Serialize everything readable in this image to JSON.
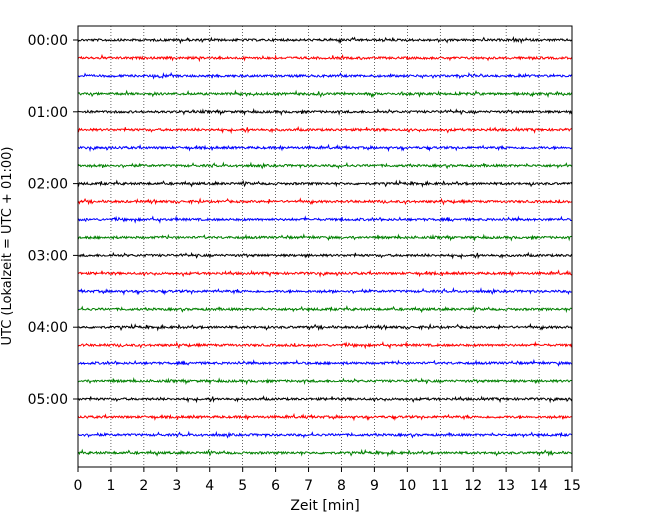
{
  "chart_data": {
    "type": "line",
    "title": "",
    "xlabel": "Zeit  [min]",
    "ylabel": "UTC (Lokalzeit = UTC + 01:00)",
    "xlim": [
      0,
      15
    ],
    "x_ticks": [
      0,
      1,
      2,
      3,
      4,
      5,
      6,
      7,
      8,
      9,
      10,
      11,
      12,
      13,
      14,
      15
    ],
    "x_grid": true,
    "x_grid_style": "dotted",
    "trace_interval_min": 15,
    "y_tick_labels": [
      "00:00",
      "01:00",
      "02:00",
      "03:00",
      "04:00",
      "05:00"
    ],
    "trace_colors": [
      "#000000",
      "#ff0000",
      "#0000ff",
      "#008000"
    ],
    "traces": [
      {
        "start": "00:00",
        "color": "#000000"
      },
      {
        "start": "00:15",
        "color": "#ff0000"
      },
      {
        "start": "00:30",
        "color": "#0000ff"
      },
      {
        "start": "00:45",
        "color": "#008000"
      },
      {
        "start": "01:00",
        "color": "#000000"
      },
      {
        "start": "01:15",
        "color": "#ff0000"
      },
      {
        "start": "01:30",
        "color": "#0000ff"
      },
      {
        "start": "01:45",
        "color": "#008000"
      },
      {
        "start": "02:00",
        "color": "#000000"
      },
      {
        "start": "02:15",
        "color": "#ff0000"
      },
      {
        "start": "02:30",
        "color": "#0000ff"
      },
      {
        "start": "02:45",
        "color": "#008000"
      },
      {
        "start": "03:00",
        "color": "#000000"
      },
      {
        "start": "03:15",
        "color": "#ff0000"
      },
      {
        "start": "03:30",
        "color": "#0000ff"
      },
      {
        "start": "03:45",
        "color": "#008000"
      },
      {
        "start": "04:00",
        "color": "#000000"
      },
      {
        "start": "04:15",
        "color": "#ff0000"
      },
      {
        "start": "04:30",
        "color": "#0000ff"
      },
      {
        "start": "04:45",
        "color": "#008000"
      },
      {
        "start": "05:00",
        "color": "#000000"
      },
      {
        "start": "05:15",
        "color": "#ff0000"
      },
      {
        "start": "05:30",
        "color": "#0000ff"
      },
      {
        "start": "05:45",
        "color": "#008000"
      }
    ]
  }
}
